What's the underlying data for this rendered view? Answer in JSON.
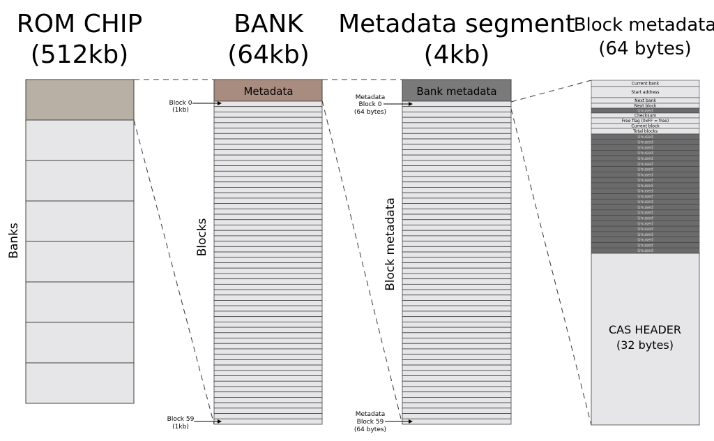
{
  "columns": {
    "rom": {
      "title_line1": "ROM CHIP",
      "title_line2": "(512kb)",
      "side_label": "Banks"
    },
    "bank": {
      "title_line1": "BANK",
      "title_line2": "(64kb)",
      "side_label": "Blocks",
      "header_label": "Metadata",
      "first_block_line1": "Block 0",
      "first_block_line2": "(1kb)",
      "last_block_line1": "Block 59",
      "last_block_line2": "(1kb)"
    },
    "metadata_segment": {
      "title_line1": "Metadata segment",
      "title_line2": "(4kb)",
      "side_label": "Block metadata",
      "header_label": "Bank metadata",
      "first_line1": "Metadata",
      "first_line2": "Block 0",
      "first_line3": "(64 bytes)",
      "last_line1": "Metadata",
      "last_line2": "Block 59",
      "last_line3": "(64 bytes)"
    },
    "block_metadata": {
      "title_line1": "Block metadata",
      "title_line2": "(64 bytes)",
      "fields": [
        "Current bank",
        "Start address",
        "Next bank",
        "Next block",
        "Unused",
        "Checksum",
        "Free flag (0xFF = free)",
        "Current block",
        "Total blocks"
      ],
      "unused_label": "Unused",
      "cas_line1": "CAS HEADER",
      "cas_line2": "(32 bytes)"
    }
  },
  "counts": {
    "rom_banks": 8,
    "bank_blocks": 60,
    "metadata_blocks": 60,
    "unused_trailing_rows": 22
  },
  "colors": {
    "rom_first_bank": "#b8b0a4",
    "cell_fill": "#e6e6e8",
    "bank_header": "#a88c80",
    "metadata_header": "#7a7a7a",
    "unused_fill": "#6b6b6b",
    "outline": "#404040"
  }
}
